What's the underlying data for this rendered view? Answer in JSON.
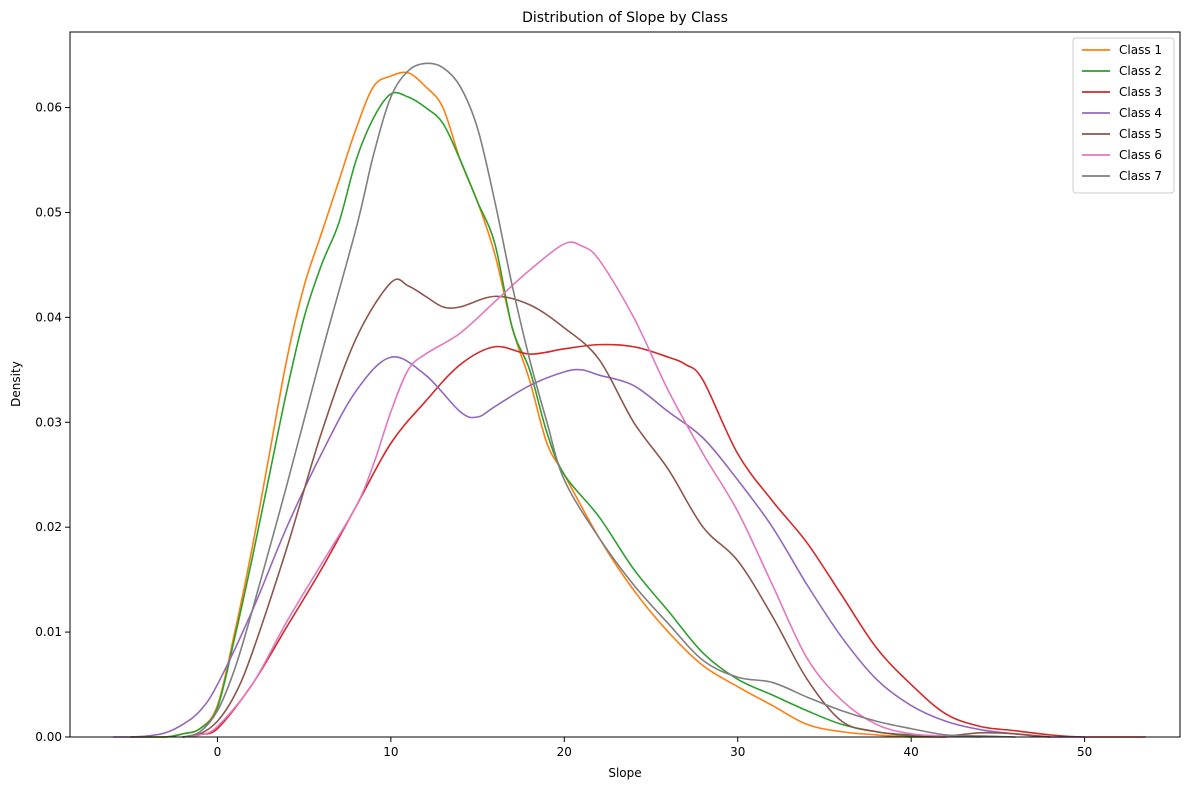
{
  "chart_data": {
    "type": "line",
    "title": "Distribution of Slope by Class",
    "xlabel": "Slope",
    "ylabel": "Density",
    "xlim": [
      -8.5,
      55.5
    ],
    "ylim": [
      0,
      0.0672
    ],
    "xticks": [
      0,
      10,
      20,
      30,
      40,
      50
    ],
    "yticks": [
      0.0,
      0.01,
      0.02,
      0.03,
      0.04,
      0.05,
      0.06
    ],
    "ytick_labels": [
      "0.00",
      "0.01",
      "0.02",
      "0.03",
      "0.04",
      "0.05",
      "0.06"
    ],
    "grid": false,
    "legend_position": "top-right",
    "series": [
      {
        "name": "Class 1",
        "color": "#ff7f0e",
        "x": [
          -5,
          -3,
          -2,
          -1,
          0,
          1,
          2,
          3,
          4,
          5,
          6,
          7,
          8,
          9,
          10,
          11,
          12,
          13,
          14,
          15,
          16,
          17,
          18,
          19,
          20,
          22,
          24,
          26,
          28,
          30,
          32,
          34,
          36,
          38,
          40,
          42
        ],
        "y": [
          0.0,
          0.0,
          0.0003,
          0.0008,
          0.003,
          0.01,
          0.018,
          0.027,
          0.036,
          0.043,
          0.048,
          0.053,
          0.058,
          0.062,
          0.063,
          0.0633,
          0.062,
          0.06,
          0.055,
          0.051,
          0.046,
          0.039,
          0.034,
          0.028,
          0.025,
          0.019,
          0.014,
          0.01,
          0.0068,
          0.0048,
          0.003,
          0.0012,
          0.0005,
          0.0002,
          0.0,
          0.0
        ]
      },
      {
        "name": "Class 2",
        "color": "#2ca02c",
        "x": [
          -5,
          -3,
          -2,
          -1,
          0,
          1,
          2,
          3,
          4,
          5,
          6,
          7,
          8,
          9,
          10,
          11,
          12,
          13,
          14,
          15,
          16,
          17,
          18,
          19,
          20,
          22,
          24,
          26,
          28,
          30,
          32,
          34,
          36,
          38,
          40,
          42
        ],
        "y": [
          0.0,
          0.0,
          0.0003,
          0.0008,
          0.0028,
          0.0095,
          0.017,
          0.025,
          0.033,
          0.04,
          0.045,
          0.049,
          0.055,
          0.059,
          0.0613,
          0.061,
          0.06,
          0.0585,
          0.055,
          0.051,
          0.047,
          0.039,
          0.035,
          0.029,
          0.025,
          0.021,
          0.016,
          0.012,
          0.008,
          0.0055,
          0.004,
          0.0025,
          0.0012,
          0.0005,
          0.0001,
          0.0
        ]
      },
      {
        "name": "Class 3",
        "color": "#d62728",
        "x": [
          -1,
          0,
          2,
          4,
          6,
          8,
          10,
          12,
          14,
          16,
          18,
          20,
          22,
          24,
          26,
          27,
          28,
          30,
          32,
          34,
          36,
          38,
          40,
          42,
          44,
          46,
          48,
          50,
          53.5
        ],
        "y": [
          0.0003,
          0.0008,
          0.005,
          0.0105,
          0.016,
          0.022,
          0.028,
          0.032,
          0.0355,
          0.0372,
          0.0365,
          0.037,
          0.0374,
          0.0372,
          0.0362,
          0.0355,
          0.034,
          0.027,
          0.0225,
          0.0185,
          0.0135,
          0.0085,
          0.005,
          0.0022,
          0.001,
          0.0006,
          0.0002,
          0.0,
          0.0
        ]
      },
      {
        "name": "Class 4",
        "color": "#9467bd",
        "x": [
          -6,
          -5,
          -4,
          -3,
          -2,
          -1,
          0,
          2,
          4,
          6,
          8,
          10,
          12,
          14,
          15,
          16,
          18,
          20,
          21,
          22,
          24,
          26,
          28,
          30,
          32,
          34,
          36,
          38,
          40,
          42,
          44,
          46,
          48,
          50
        ],
        "y": [
          0.0,
          0.0,
          0.0001,
          0.0004,
          0.0012,
          0.0025,
          0.005,
          0.012,
          0.02,
          0.027,
          0.033,
          0.0362,
          0.0345,
          0.031,
          0.0305,
          0.0315,
          0.0335,
          0.0348,
          0.035,
          0.0345,
          0.0335,
          0.031,
          0.0285,
          0.0245,
          0.02,
          0.0145,
          0.0095,
          0.0055,
          0.003,
          0.0015,
          0.0007,
          0.0003,
          0.0,
          0.0
        ]
      },
      {
        "name": "Class 5",
        "color": "#8c564b",
        "x": [
          -2,
          -1,
          0,
          1,
          2,
          4,
          6,
          8,
          10,
          11,
          12,
          13,
          14,
          16,
          18,
          20,
          22,
          24,
          26,
          28,
          30,
          32,
          34,
          36,
          38,
          40,
          42,
          44,
          46,
          48
        ],
        "y": [
          0.0,
          0.0003,
          0.0015,
          0.004,
          0.008,
          0.018,
          0.029,
          0.038,
          0.0433,
          0.043,
          0.042,
          0.041,
          0.041,
          0.042,
          0.0412,
          0.039,
          0.036,
          0.03,
          0.0255,
          0.02,
          0.0168,
          0.0115,
          0.0055,
          0.0015,
          0.0005,
          0.0002,
          0.0001,
          0.0004,
          0.0003,
          0.0
        ]
      },
      {
        "name": "Class 6",
        "color": "#e377c2",
        "x": [
          -2,
          -1,
          0,
          2,
          4,
          6,
          8,
          9,
          10,
          11,
          12,
          14,
          16,
          18,
          20,
          21,
          22,
          24,
          26,
          28,
          30,
          32,
          34,
          36,
          38,
          40,
          42,
          44
        ],
        "y": [
          0.0,
          0.0002,
          0.001,
          0.005,
          0.011,
          0.0165,
          0.022,
          0.026,
          0.031,
          0.035,
          0.0365,
          0.0385,
          0.0415,
          0.0445,
          0.047,
          0.0468,
          0.0455,
          0.04,
          0.033,
          0.027,
          0.0215,
          0.0145,
          0.0075,
          0.0035,
          0.0012,
          0.0003,
          0.0001,
          0.0
        ]
      },
      {
        "name": "Class 7",
        "color": "#7f7f7f",
        "x": [
          -2,
          -1,
          0,
          1,
          2,
          4,
          6,
          8,
          9,
          10,
          11,
          12,
          13,
          14,
          15,
          16,
          17,
          18,
          19,
          20,
          22,
          24,
          26,
          28,
          30,
          32,
          34,
          36,
          38,
          40,
          42,
          44,
          46
        ],
        "y": [
          0.0,
          0.0005,
          0.0025,
          0.0065,
          0.012,
          0.024,
          0.0365,
          0.0485,
          0.0555,
          0.061,
          0.0635,
          0.0642,
          0.0638,
          0.062,
          0.058,
          0.051,
          0.043,
          0.036,
          0.03,
          0.0245,
          0.019,
          0.0145,
          0.0108,
          0.0073,
          0.0057,
          0.0052,
          0.0038,
          0.0025,
          0.0015,
          0.0008,
          0.0002,
          0.0001,
          0.0
        ]
      }
    ]
  }
}
